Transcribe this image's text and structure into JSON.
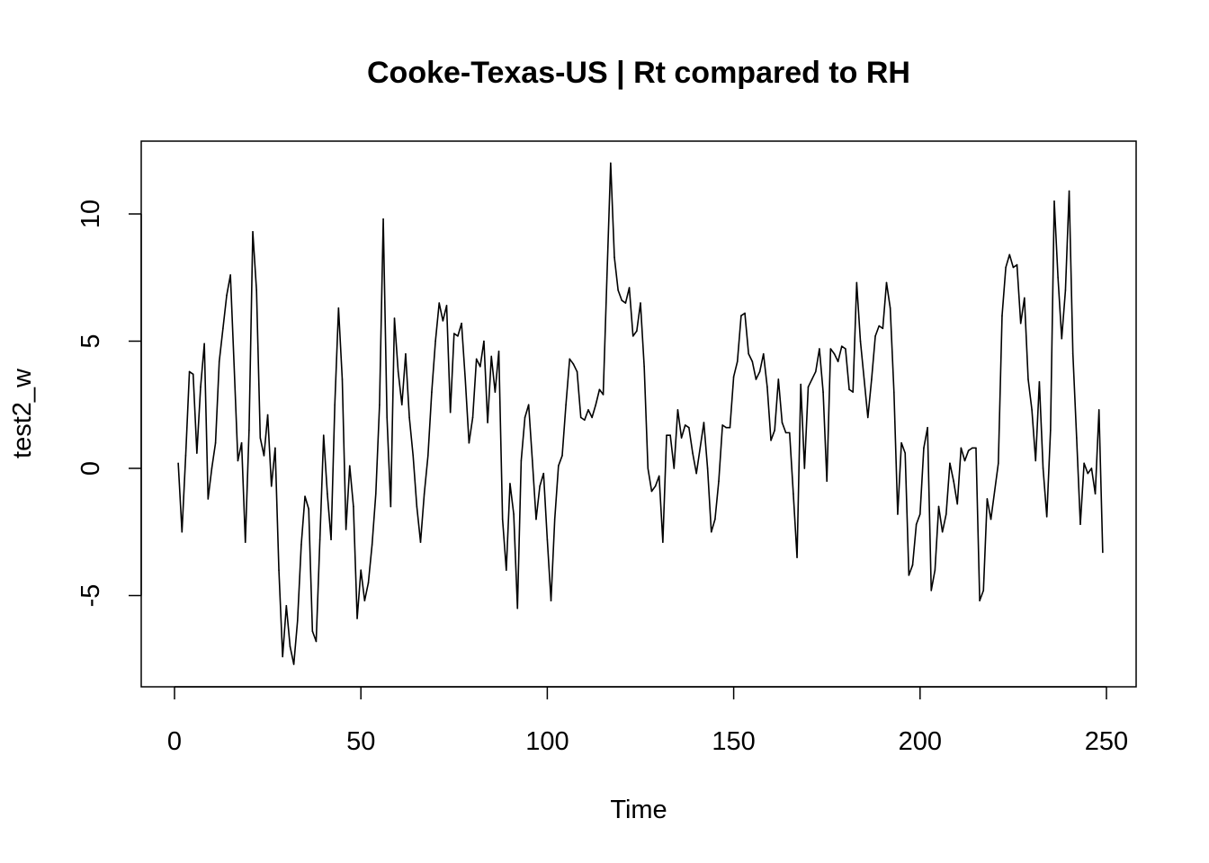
{
  "chart_data": {
    "type": "line",
    "title": "Cooke-Texas-US | Rt compared to RH",
    "xlabel": "Time",
    "ylabel": "test2_w",
    "xlim": [
      0,
      250
    ],
    "ylim": [
      -8,
      12
    ],
    "x_ticks": [
      "0",
      "50",
      "100",
      "150",
      "200",
      "250"
    ],
    "y_ticks": [
      "-5",
      "0",
      "5",
      "10"
    ],
    "grid": false,
    "legend": "none",
    "color": "#000000",
    "series": [
      {
        "x_start": 1,
        "x_step": 1,
        "values": [
          0.2,
          -2.5,
          0.5,
          3.8,
          3.7,
          0.6,
          3.2,
          4.9,
          -1.2,
          0.0,
          1.0,
          4.2,
          5.5,
          6.8,
          7.6,
          4.0,
          0.3,
          1.0,
          -2.9,
          1.5,
          9.3,
          7.0,
          1.2,
          0.5,
          2.1,
          -0.7,
          0.8,
          -4.0,
          -7.4,
          -5.4,
          -7.0,
          -7.7,
          -6.0,
          -3.0,
          -1.1,
          -1.6,
          -6.4,
          -6.8,
          -2.8,
          1.3,
          -1.0,
          -2.8,
          2.5,
          6.3,
          3.5,
          -2.4,
          0.1,
          -1.5,
          -5.9,
          -4.0,
          -5.2,
          -4.5,
          -3.0,
          -1.0,
          2.5,
          9.8,
          2.0,
          -1.5,
          5.9,
          3.8,
          2.5,
          4.5,
          2.0,
          0.5,
          -1.5,
          -2.9,
          -1.0,
          0.5,
          3.0,
          5.0,
          6.5,
          5.8,
          6.4,
          2.2,
          5.3,
          5.2,
          5.7,
          3.5,
          1.0,
          2.0,
          4.3,
          4.0,
          5.0,
          1.8,
          4.4,
          3.0,
          4.6,
          -2.0,
          -4.0,
          -0.6,
          -1.8,
          -5.5,
          0.3,
          2.0,
          2.5,
          0.3,
          -2.0,
          -0.7,
          -0.2,
          -2.8,
          -5.2,
          -2.0,
          0.1,
          0.5,
          2.5,
          4.3,
          4.1,
          3.8,
          2.0,
          1.9,
          2.3,
          2.0,
          2.5,
          3.1,
          2.9,
          7.5,
          12.0,
          8.3,
          7.0,
          6.6,
          6.5,
          7.1,
          5.2,
          5.4,
          6.5,
          4.0,
          0.0,
          -0.9,
          -0.7,
          -0.3,
          -2.9,
          1.3,
          1.3,
          0.0,
          2.3,
          1.2,
          1.7,
          1.6,
          0.6,
          -0.2,
          0.8,
          1.8,
          0.0,
          -2.5,
          -2.0,
          -0.5,
          1.7,
          1.6,
          1.6,
          3.6,
          4.2,
          6.0,
          6.1,
          4.5,
          4.2,
          3.5,
          3.8,
          4.5,
          3.2,
          1.1,
          1.5,
          3.5,
          1.8,
          1.4,
          1.4,
          -1.0,
          -3.5,
          3.3,
          0.0,
          3.2,
          3.5,
          3.8,
          4.7,
          3.0,
          -0.5,
          4.7,
          4.5,
          4.2,
          4.8,
          4.7,
          3.1,
          3.0,
          7.3,
          5.0,
          3.5,
          2.0,
          3.5,
          5.2,
          5.6,
          5.5,
          7.3,
          6.3,
          3.0,
          -1.8,
          1.0,
          0.6,
          -4.2,
          -3.8,
          -2.2,
          -1.8,
          0.8,
          1.6,
          -4.8,
          -4.0,
          -1.5,
          -2.5,
          -1.8,
          0.2,
          -0.5,
          -1.4,
          0.8,
          0.3,
          0.7,
          0.8,
          0.8,
          -5.2,
          -4.8,
          -1.2,
          -2.0,
          -0.9,
          0.2,
          6.0,
          7.9,
          8.4,
          7.9,
          8.0,
          5.7,
          6.7,
          3.5,
          2.3,
          0.3,
          3.4,
          0.0,
          -1.9,
          1.5,
          10.5,
          7.5,
          5.1,
          7.0,
          10.9,
          4.5,
          1.2,
          -2.2,
          0.2,
          -0.2,
          0.0,
          -1.0,
          2.3,
          -3.3
        ]
      }
    ]
  }
}
